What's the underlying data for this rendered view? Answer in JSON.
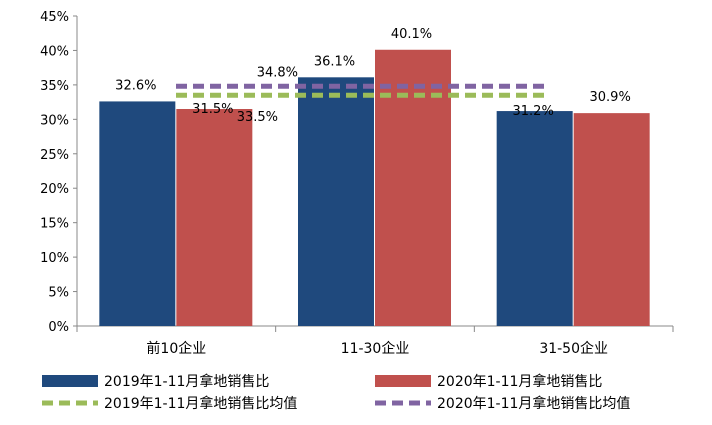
{
  "chart_data": {
    "type": "bar",
    "categories": [
      "前10企业",
      "11-30企业",
      "31-50企业"
    ],
    "series": [
      {
        "name": "2019年1-11月拿地销售比",
        "values": [
          32.6,
          36.1,
          31.2
        ],
        "color": "#1f497d",
        "labels": [
          "32.6%",
          "36.1%",
          "31.2%"
        ]
      },
      {
        "name": "2020年1-11月拿地销售比",
        "values": [
          31.5,
          40.1,
          30.9
        ],
        "color": "#c0504d",
        "labels": [
          "31.5%",
          "40.1%",
          "30.9%"
        ]
      }
    ],
    "reference_lines": [
      {
        "name": "2019年1-11月拿地销售比均值",
        "value": 33.5,
        "label": "33.5%",
        "color": "#9bbb59",
        "style": "dashed"
      },
      {
        "name": "2020年1-11月拿地销售比均值",
        "value": 34.8,
        "label": "34.8%",
        "color": "#8064a2",
        "style": "dashed"
      }
    ],
    "ylim": [
      0,
      45
    ],
    "yticks": [
      "0%",
      "5%",
      "10%",
      "15%",
      "20%",
      "25%",
      "30%",
      "35%",
      "40%",
      "45%"
    ],
    "ytick_values": [
      0,
      5,
      10,
      15,
      20,
      25,
      30,
      35,
      40,
      45
    ],
    "grid": false,
    "legend_position": "bottom",
    "title": "",
    "xlabel": "",
    "ylabel": ""
  }
}
